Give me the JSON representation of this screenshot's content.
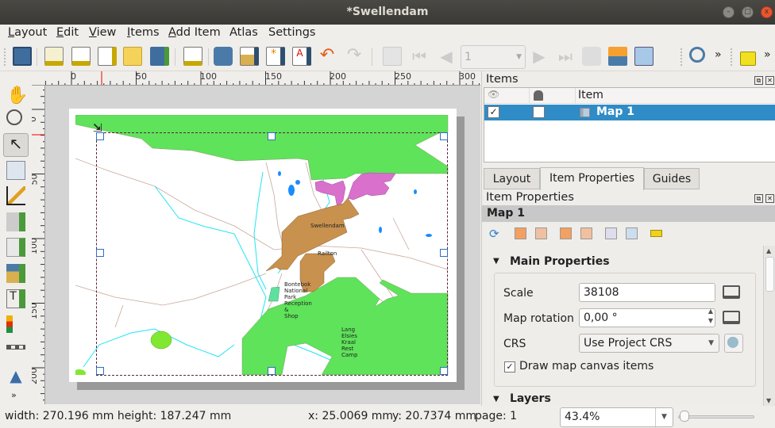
{
  "window": {
    "title": "*Swellendam",
    "minimize": "–",
    "maximize": "□",
    "close": "x"
  },
  "menu": [
    {
      "label": "Layout",
      "u": "L",
      "rest": "ayout"
    },
    {
      "label": "Edit",
      "u": "E",
      "rest": "dit"
    },
    {
      "label": "View",
      "u": "V",
      "rest": "iew"
    },
    {
      "label": "Items",
      "u": "I",
      "rest": "tems"
    },
    {
      "label": "Add Item",
      "u": "A",
      "rest": "dd Item"
    },
    {
      "label": "Atlas",
      "u": "",
      "rest": "Atlas"
    },
    {
      "label": "Settings",
      "u": "",
      "rest": "Settings"
    }
  ],
  "toolbar": {
    "page_value": "1",
    "overflow": "»"
  },
  "ruler": {
    "h_labels": [
      "0",
      "50",
      "100",
      "150",
      "200",
      "250",
      "300"
    ],
    "v_labels": [
      "0",
      "50",
      "100",
      "150",
      "200"
    ]
  },
  "map": {
    "labels": {
      "town1": "Swellendam",
      "town2": "Railton",
      "poi1": [
        "Bontebok",
        "National",
        "Park",
        "Reception",
        "&",
        "Shop"
      ],
      "poi2": [
        "Lang",
        "Elsies",
        "Kraal",
        "Rest",
        "Camp"
      ]
    },
    "colors": {
      "forest": "#5ee35a",
      "urban": "#c8914e",
      "farm": "#d870cc",
      "water": "#1a8cff",
      "river": "#1ee6f5",
      "road": "#c8a89a"
    }
  },
  "items_panel": {
    "title": "Items",
    "col_item": "Item",
    "rows": [
      {
        "name": "Map 1",
        "visible": true,
        "locked": false,
        "selected": true
      }
    ]
  },
  "tabs": [
    {
      "label": "Layout"
    },
    {
      "label": "Item Properties",
      "active": true
    },
    {
      "label": "Guides"
    }
  ],
  "item_properties": {
    "title": "Item Properties",
    "item_name": "Map 1",
    "section_main": "Main Properties",
    "section_layers": "Layers",
    "scale_label": "Scale",
    "scale_value": "38108",
    "rotation_label": "Map rotation",
    "rotation_value": "0,00 °",
    "crs_label": "CRS",
    "crs_value": "Use Project CRS",
    "draw_items_label": "Draw map canvas items",
    "draw_items_checked": true
  },
  "status": {
    "size": "width: 270.196 mm height: 187.247 mm",
    "x": "x: 25.0069 mm",
    "y": "y: 20.7374 mm",
    "page": "page: 1",
    "zoom": "43.4%"
  }
}
